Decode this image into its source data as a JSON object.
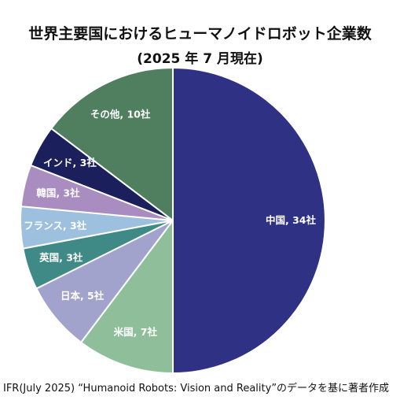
{
  "chart_data": {
    "type": "pie",
    "title": "世界主要国におけるヒューマノイドロボット企業数",
    "subtitle": "(2025 年 7 月現在)",
    "slices": [
      {
        "category": "中国",
        "value": 34,
        "label": "中国, 34社",
        "color": "#2e3184"
      },
      {
        "category": "米国",
        "value": 7,
        "label": "米国, 7社",
        "color": "#8fbf9a"
      },
      {
        "category": "日本",
        "value": 5,
        "label": "日本, 5社",
        "color": "#a2a3cc"
      },
      {
        "category": "英国",
        "value": 3,
        "label": "英国, 3社",
        "color": "#3f8a87"
      },
      {
        "category": "フランス",
        "value": 3,
        "label": "フランス, 3社",
        "color": "#9cc0dd"
      },
      {
        "category": "韓国",
        "value": 3,
        "label": "韓国, 3社",
        "color": "#a98cc0"
      },
      {
        "category": "インド",
        "value": 3,
        "label": "インド, 3社",
        "color": "#1b1f5c"
      },
      {
        "category": "その他",
        "value": 10,
        "label": "その他, 10社",
        "color": "#4f7f5e"
      }
    ],
    "source": "IFR(July 2025) “Humanoid Robots: Vision and Reality”のデータを基に著者作成"
  }
}
